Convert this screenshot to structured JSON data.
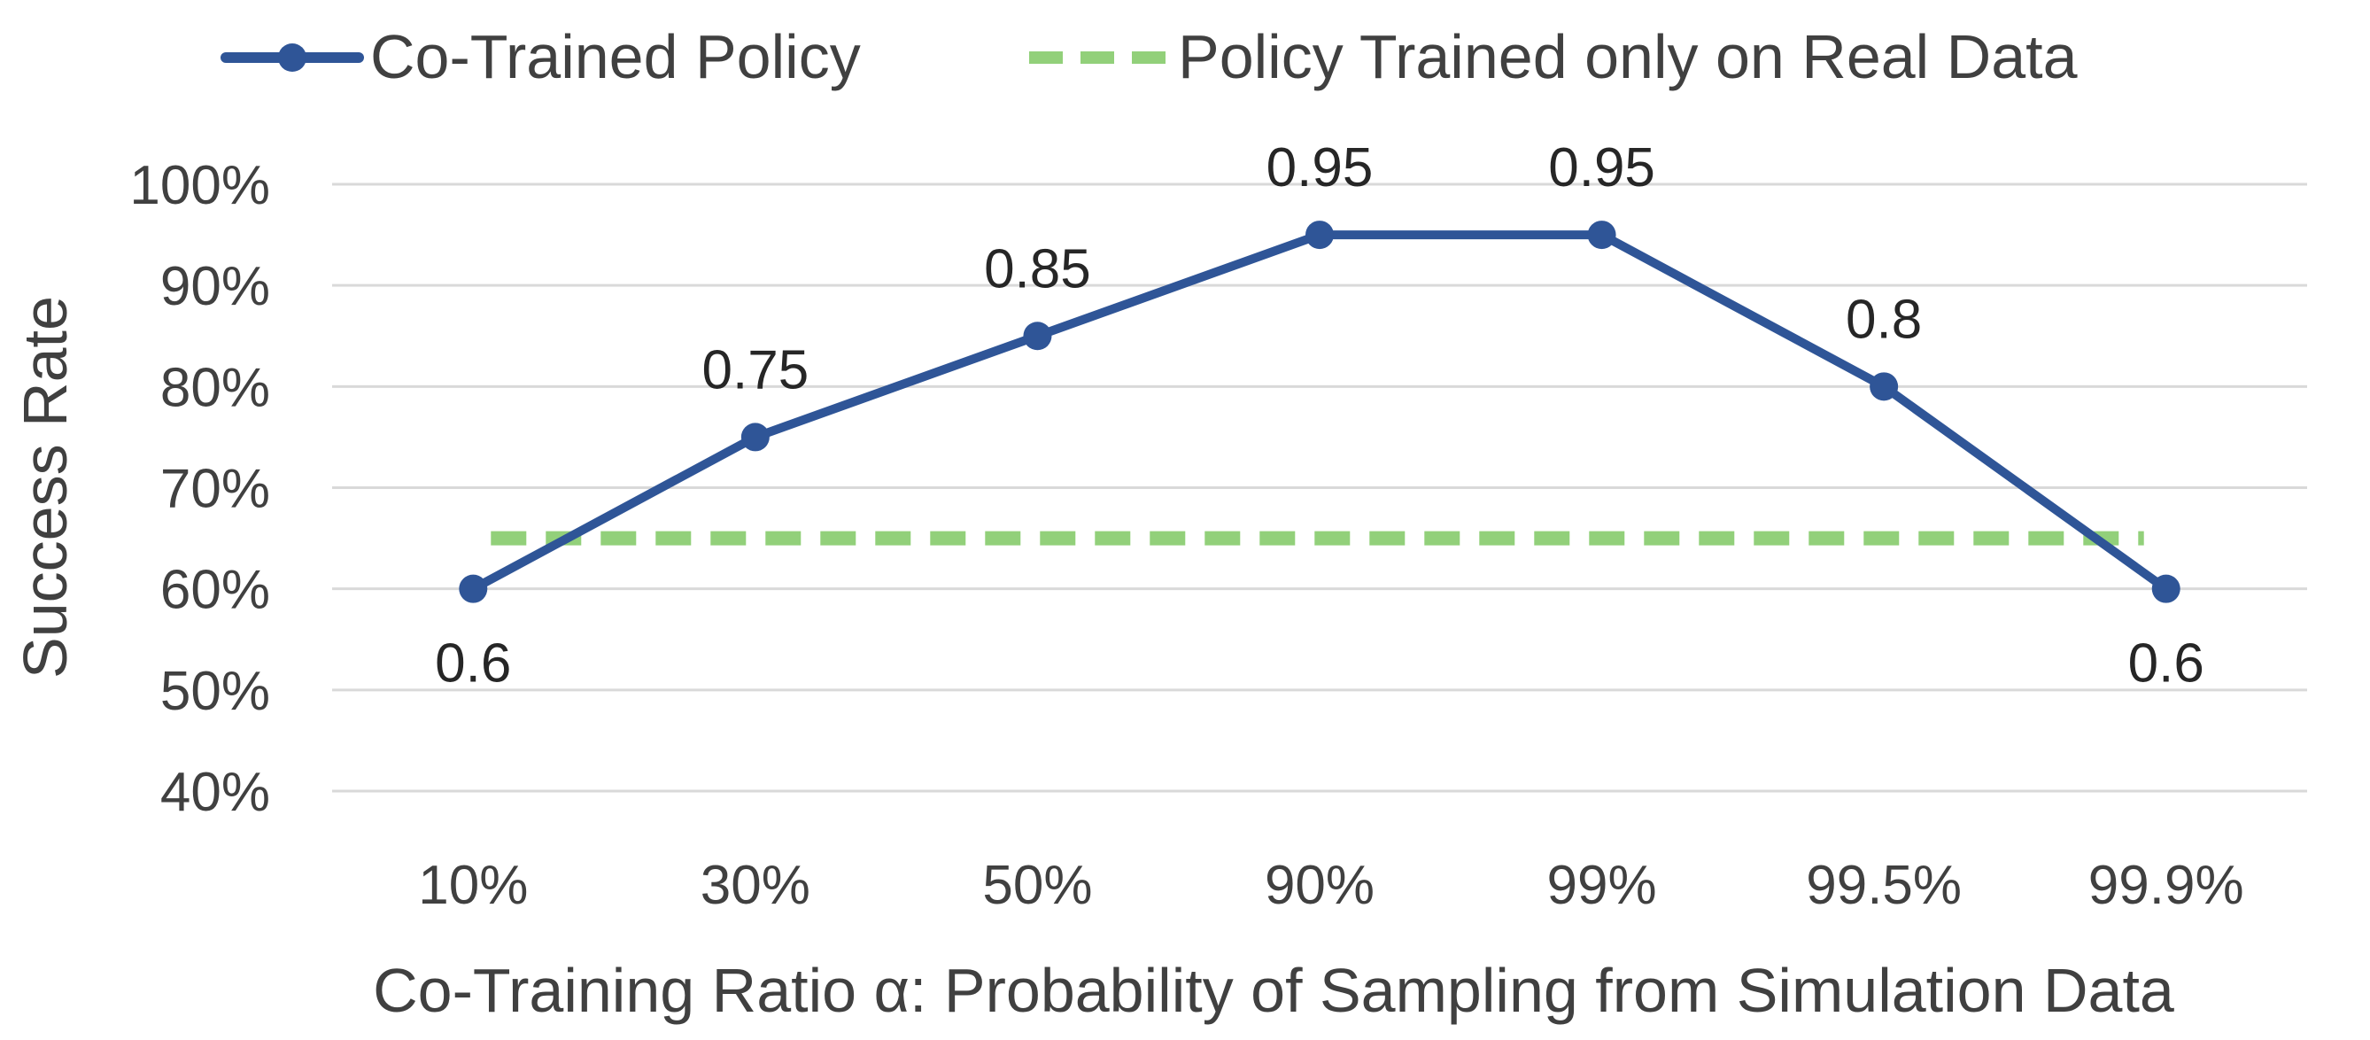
{
  "chart_data": {
    "type": "line",
    "categories": [
      "10%",
      "30%",
      "50%",
      "90%",
      "99%",
      "99.5%",
      "99.9%"
    ],
    "series": [
      {
        "name": "Co-Trained Policy",
        "values": [
          0.6,
          0.75,
          0.85,
          0.95,
          0.95,
          0.8,
          0.6
        ],
        "data_labels": [
          "0.6",
          "0.75",
          "0.85",
          "0.95",
          "0.95",
          "0.8",
          "0.6"
        ],
        "color": "#2f5597",
        "style": "solid-with-markers"
      },
      {
        "name": "Policy Trained only on Real Data",
        "values": [
          0.65,
          0.65,
          0.65,
          0.65,
          0.65,
          0.65,
          0.65
        ],
        "color": "#92d07a",
        "style": "dashed"
      }
    ],
    "xlabel": "Co-Training Ratio α: Probability of Sampling from Simulation Data",
    "ylabel": "Success Rate",
    "ylim": [
      0.4,
      1.0
    ],
    "yticks": [
      "40%",
      "50%",
      "60%",
      "70%",
      "80%",
      "90%",
      "100%"
    ],
    "grid": true,
    "legend_position": "top"
  }
}
